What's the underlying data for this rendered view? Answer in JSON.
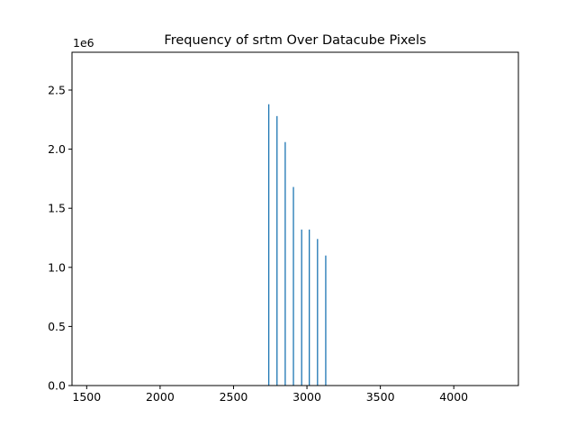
{
  "chart_data": {
    "type": "bar",
    "title": "Frequency of srtm Over Datacube Pixels",
    "xlabel": "",
    "ylabel": "",
    "y_offset_label": "1e6",
    "xlim": [
      1400,
      4440
    ],
    "ylim": [
      0,
      2.82
    ],
    "x_ticks": [
      1500,
      2000,
      2500,
      3000,
      3500,
      4000
    ],
    "x_tick_labels": [
      "1500",
      "2000",
      "2500",
      "3000",
      "3500",
      "4000"
    ],
    "y_ticks": [
      0.0,
      0.5,
      1.0,
      1.5,
      2.0,
      2.5
    ],
    "y_tick_labels": [
      "0.0",
      "0.5",
      "1.0",
      "1.5",
      "2.0",
      "2.5"
    ],
    "grid": false,
    "bar_color": "#1f77b4",
    "bar_width": 8,
    "series": [
      {
        "x": [
          2740,
          2796,
          2852,
          2908,
          2964,
          3016,
          3072,
          3128
        ],
        "values": [
          2.38,
          2.28,
          2.06,
          1.68,
          1.32,
          1.32,
          1.24,
          1.1
        ]
      }
    ]
  }
}
